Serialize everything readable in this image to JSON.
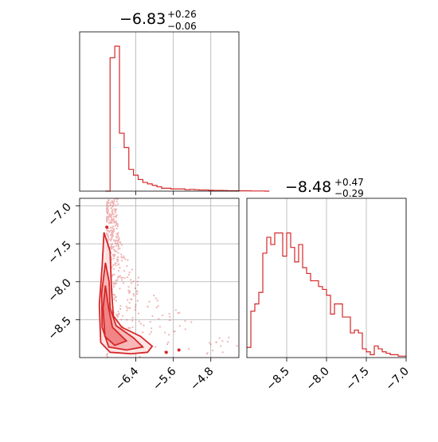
{
  "chart_data": {
    "type": "corner",
    "color": "#d62728",
    "panels": {
      "hist_x": {
        "title": {
          "value": "−6.83",
          "plus": "+0.26",
          "minus": "−0.06"
        },
        "xlim": [
          -7.6,
          -4.2
        ],
        "bin_width": 0.1,
        "counts_rel": [
          0.0,
          0.92,
          1.0,
          0.4,
          0.3,
          0.15,
          0.11,
          0.08,
          0.06,
          0.05,
          0.04,
          0.03,
          0.02,
          0.02,
          0.015,
          0.015,
          0.015,
          0.01,
          0.012,
          0.01,
          0.008,
          0.008,
          0.006,
          0.005,
          0.005,
          0.004,
          0.003,
          0.003,
          0.002,
          0.002,
          0.002,
          0.001,
          0.001,
          0.001,
          0.0
        ],
        "xticks": [
          -6.4,
          -5.6,
          -4.8
        ]
      },
      "hist_y": {
        "title": {
          "value": "−8.48",
          "plus": "+0.47",
          "minus": "−0.29"
        },
        "xlim": [
          -9.0,
          -7.0
        ],
        "xticks": [
          -8.5,
          -8.0,
          -7.5,
          -7.0
        ],
        "xtick_labels": [
          "−8.5",
          "−8.0",
          "−7.5",
          "−7.0"
        ],
        "bin_width": 0.05,
        "counts_rel": [
          0.07,
          0.32,
          0.37,
          0.45,
          0.72,
          0.83,
          0.78,
          0.86,
          0.86,
          0.7,
          0.86,
          0.76,
          0.66,
          0.78,
          0.62,
          0.58,
          0.53,
          0.53,
          0.49,
          0.47,
          0.43,
          0.3,
          0.37,
          0.37,
          0.28,
          0.28,
          0.17,
          0.19,
          0.17,
          0.06,
          0.04,
          0.02,
          0.08,
          0.06,
          0.04,
          0.03,
          0.02,
          0.02,
          0.01,
          0.01
        ]
      },
      "scatter": {
        "xlim": [
          -7.6,
          -4.2
        ],
        "ylim": [
          -9.0,
          -6.9
        ],
        "xticks": [
          -6.4,
          -5.6,
          -4.8
        ],
        "xtick_labels": [
          "−6.4",
          "−5.6",
          "−4.8"
        ],
        "yticks": [
          -7.0,
          -7.5,
          -8.0,
          -8.5
        ],
        "ytick_labels": [
          "−7.0",
          "−7.5",
          "−8.0",
          "−8.5"
        ]
      }
    }
  }
}
